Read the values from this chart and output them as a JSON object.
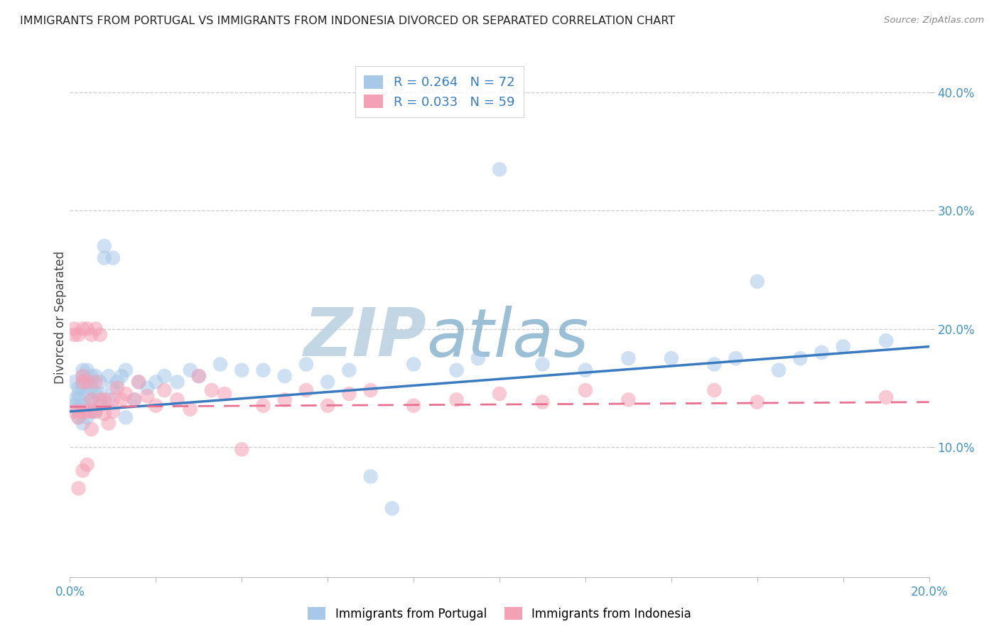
{
  "title": "IMMIGRANTS FROM PORTUGAL VS IMMIGRANTS FROM INDONESIA DIVORCED OR SEPARATED CORRELATION CHART",
  "source": "Source: ZipAtlas.com",
  "ylabel": "Divorced or Separated",
  "ytick_vals": [
    0.1,
    0.2,
    0.3,
    0.4
  ],
  "xlim": [
    0.0,
    0.2
  ],
  "ylim": [
    -0.01,
    0.43
  ],
  "legend1_label": "R = 0.264   N = 72",
  "legend2_label": "R = 0.033   N = 59",
  "legend_portugal": "Immigrants from Portugal",
  "legend_indonesia": "Immigrants from Indonesia",
  "portugal_color": "#a8c8e8",
  "indonesia_color": "#f4a0b5",
  "portugal_line_color": "#3a7abf",
  "indonesia_line_color": "#e87090",
  "watermark": "ZIPatlas",
  "watermark_color_zip": "#b0c8e0",
  "watermark_color_atlas": "#80aad0",
  "portugal_x": [
    0.001,
    0.001,
    0.001,
    0.002,
    0.002,
    0.002,
    0.002,
    0.003,
    0.003,
    0.003,
    0.003,
    0.003,
    0.003,
    0.004,
    0.004,
    0.004,
    0.004,
    0.004,
    0.005,
    0.005,
    0.005,
    0.005,
    0.005,
    0.006,
    0.006,
    0.006,
    0.007,
    0.007,
    0.007,
    0.008,
    0.008,
    0.009,
    0.009,
    0.01,
    0.01,
    0.011,
    0.012,
    0.013,
    0.013,
    0.015,
    0.016,
    0.018,
    0.02,
    0.022,
    0.025,
    0.028,
    0.03,
    0.035,
    0.04,
    0.045,
    0.05,
    0.055,
    0.06,
    0.065,
    0.07,
    0.075,
    0.08,
    0.09,
    0.095,
    0.1,
    0.11,
    0.12,
    0.13,
    0.14,
    0.15,
    0.155,
    0.16,
    0.165,
    0.17,
    0.175,
    0.18,
    0.19
  ],
  "portugal_y": [
    0.135,
    0.14,
    0.155,
    0.125,
    0.14,
    0.15,
    0.145,
    0.12,
    0.135,
    0.15,
    0.155,
    0.16,
    0.165,
    0.125,
    0.135,
    0.145,
    0.155,
    0.165,
    0.13,
    0.14,
    0.15,
    0.155,
    0.16,
    0.13,
    0.145,
    0.16,
    0.135,
    0.145,
    0.155,
    0.26,
    0.27,
    0.14,
    0.16,
    0.15,
    0.26,
    0.155,
    0.16,
    0.165,
    0.125,
    0.14,
    0.155,
    0.15,
    0.155,
    0.16,
    0.155,
    0.165,
    0.16,
    0.17,
    0.165,
    0.165,
    0.16,
    0.17,
    0.155,
    0.165,
    0.075,
    0.048,
    0.17,
    0.165,
    0.175,
    0.335,
    0.17,
    0.165,
    0.175,
    0.175,
    0.17,
    0.175,
    0.24,
    0.165,
    0.175,
    0.18,
    0.185,
    0.19
  ],
  "indonesia_x": [
    0.001,
    0.001,
    0.001,
    0.002,
    0.002,
    0.002,
    0.002,
    0.003,
    0.003,
    0.003,
    0.003,
    0.003,
    0.004,
    0.004,
    0.004,
    0.004,
    0.005,
    0.005,
    0.005,
    0.005,
    0.006,
    0.006,
    0.006,
    0.007,
    0.007,
    0.008,
    0.008,
    0.009,
    0.01,
    0.01,
    0.011,
    0.012,
    0.013,
    0.015,
    0.016,
    0.018,
    0.02,
    0.022,
    0.025,
    0.028,
    0.03,
    0.033,
    0.036,
    0.04,
    0.045,
    0.05,
    0.055,
    0.06,
    0.065,
    0.07,
    0.08,
    0.09,
    0.1,
    0.11,
    0.12,
    0.13,
    0.15,
    0.16,
    0.19
  ],
  "indonesia_y": [
    0.13,
    0.195,
    0.2,
    0.065,
    0.125,
    0.13,
    0.195,
    0.08,
    0.13,
    0.155,
    0.16,
    0.2,
    0.085,
    0.13,
    0.155,
    0.2,
    0.115,
    0.13,
    0.14,
    0.195,
    0.13,
    0.155,
    0.2,
    0.14,
    0.195,
    0.128,
    0.14,
    0.12,
    0.13,
    0.14,
    0.15,
    0.14,
    0.145,
    0.14,
    0.155,
    0.143,
    0.135,
    0.148,
    0.14,
    0.132,
    0.16,
    0.148,
    0.145,
    0.098,
    0.135,
    0.14,
    0.148,
    0.135,
    0.145,
    0.148,
    0.135,
    0.14,
    0.145,
    0.138,
    0.148,
    0.14,
    0.148,
    0.138,
    0.142
  ],
  "regression_portugal_x0": 0.0,
  "regression_portugal_y0": 0.13,
  "regression_portugal_x1": 0.2,
  "regression_portugal_y1": 0.185,
  "regression_indonesia_x0": 0.0,
  "regression_indonesia_y0": 0.134,
  "regression_indonesia_x1": 0.2,
  "regression_indonesia_y1": 0.138
}
